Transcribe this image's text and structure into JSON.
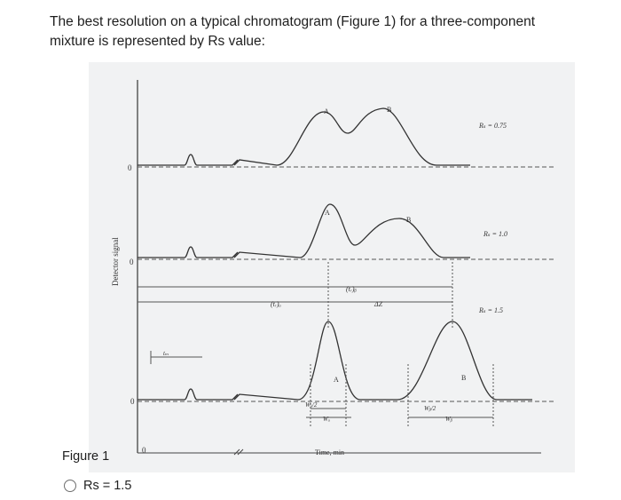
{
  "question": {
    "text": "The best resolution on a typical chromatogram (Figure 1) for a three-component mixture is represented by Rs value:"
  },
  "figure": {
    "caption": "Figure 1",
    "ylabel": "Detector signal",
    "xlabel": "Time, min",
    "traces": [
      {
        "rs_label": "Rₛ = 0.75",
        "zero_label": "0",
        "peak_a": "A",
        "peak_b": "B"
      },
      {
        "rs_label": "Rₛ = 1.0",
        "zero_label": "0",
        "peak_a": "A",
        "peak_b": "B"
      },
      {
        "rs_label": "Rₛ = 1.5",
        "zero_label": "0",
        "peak_a": "A",
        "peak_b": "B"
      }
    ],
    "axis_zero_label": "0",
    "annotations": {
      "tr_a": "(tᵣ)ₐ",
      "tr_b": "(tᵣ)ᵦ",
      "delta_z": "ΔZ",
      "tm": "tₘ",
      "wa_half": "Wₐ/2",
      "wa": "Wₐ",
      "wb_half": "Wᵦ/2",
      "wb": "Wᵦ"
    }
  },
  "options": [
    {
      "label": "Rs = 1.5"
    }
  ]
}
